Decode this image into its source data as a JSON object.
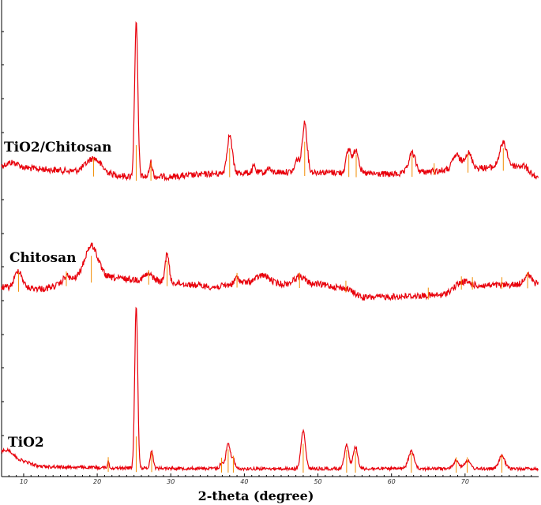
{
  "chart_data": {
    "type": "line",
    "xlabel": "2-theta (degree)",
    "ylabel": "",
    "xlim": [
      7,
      80
    ],
    "x_ticks": [
      10,
      20,
      30,
      40,
      50,
      60,
      70
    ],
    "colors": {
      "trace": "#e8000b",
      "stick": "#f28c00",
      "axis": "#000000"
    },
    "grid": false,
    "series": [
      {
        "name": "TiO2/Chitosan",
        "baseline": [
          [
            7,
            211
          ],
          [
            20,
            219
          ],
          [
            24.5,
            224
          ],
          [
            30,
            224
          ],
          [
            36,
            220
          ],
          [
            45,
            218
          ],
          [
            50,
            218
          ],
          [
            60,
            221
          ],
          [
            70,
            214
          ],
          [
            78,
            210
          ],
          [
            80,
            228
          ]
        ],
        "noise": 4,
        "peaks": [
          {
            "x": 8.5,
            "h": 6,
            "w": 0.8
          },
          {
            "x": 19.5,
            "h": 18,
            "w": 1.0
          },
          {
            "x": 25.3,
            "h": 195,
            "w": 0.22
          },
          {
            "x": 27.3,
            "h": 18,
            "w": 0.2
          },
          {
            "x": 38.0,
            "h": 48,
            "w": 0.35
          },
          {
            "x": 41.3,
            "h": 8,
            "w": 0.2
          },
          {
            "x": 43.3,
            "h": 6,
            "w": 0.2
          },
          {
            "x": 47.2,
            "h": 16,
            "w": 0.3
          },
          {
            "x": 48.2,
            "h": 63,
            "w": 0.32
          },
          {
            "x": 54.2,
            "h": 30,
            "w": 0.35
          },
          {
            "x": 55.2,
            "h": 30,
            "w": 0.35
          },
          {
            "x": 62.8,
            "h": 25,
            "w": 0.45
          },
          {
            "x": 68.8,
            "h": 18,
            "w": 0.5
          },
          {
            "x": 70.4,
            "h": 20,
            "w": 0.5
          },
          {
            "x": 75.2,
            "h": 30,
            "w": 0.5
          }
        ],
        "sticks": [
          19.5,
          25.3,
          27.3,
          38.0,
          48.2,
          54.2,
          55.2,
          62.8,
          65.8,
          70.4,
          75.2
        ]
      },
      {
        "name": "Chitosan",
        "baseline": [
          [
            7,
            364
          ],
          [
            13,
            366
          ],
          [
            17,
            354
          ],
          [
            22,
            352
          ],
          [
            30,
            358
          ],
          [
            36,
            364
          ],
          [
            40,
            358
          ],
          [
            45,
            360
          ],
          [
            50,
            360
          ],
          [
            54,
            366
          ],
          [
            56,
            377
          ],
          [
            60,
            376
          ],
          [
            67,
            374
          ],
          [
            69,
            362
          ],
          [
            72,
            362
          ],
          [
            80,
            360
          ]
        ],
        "noise": 4,
        "peaks": [
          {
            "x": 9.3,
            "h": 22,
            "w": 0.5
          },
          {
            "x": 15.8,
            "h": 8,
            "w": 0.4
          },
          {
            "x": 19.2,
            "h": 42,
            "w": 0.9
          },
          {
            "x": 27.0,
            "h": 8,
            "w": 0.6
          },
          {
            "x": 29.5,
            "h": 38,
            "w": 0.25
          },
          {
            "x": 39.0,
            "h": 8,
            "w": 0.3
          },
          {
            "x": 42.5,
            "h": 10,
            "w": 0.9
          },
          {
            "x": 47.5,
            "h": 10,
            "w": 0.7
          },
          {
            "x": 70.0,
            "h": 5,
            "w": 0.7
          },
          {
            "x": 78.5,
            "h": 12,
            "w": 0.5
          }
        ],
        "sticks": [
          9.3,
          15.8,
          19.2,
          27.0,
          29.5,
          39.0,
          47.5,
          53.8,
          65.0,
          69.5,
          71.0,
          75.0,
          78.5
        ]
      },
      {
        "name": "TiO2",
        "baseline": [
          [
            7,
            573
          ],
          [
            9,
            581
          ],
          [
            12,
            591
          ],
          [
            16,
            592
          ],
          [
            22,
            593
          ],
          [
            40,
            594
          ],
          [
            60,
            594
          ],
          [
            80,
            594
          ]
        ],
        "noise": 2,
        "peaks": [
          {
            "x": 8.0,
            "h": 6,
            "w": 0.6
          },
          {
            "x": 21.5,
            "h": 8,
            "w": 0.12
          },
          {
            "x": 25.3,
            "h": 207,
            "w": 0.2
          },
          {
            "x": 27.4,
            "h": 22,
            "w": 0.2
          },
          {
            "x": 36.9,
            "h": 8,
            "w": 0.2
          },
          {
            "x": 37.8,
            "h": 32,
            "w": 0.3
          },
          {
            "x": 38.5,
            "h": 12,
            "w": 0.2
          },
          {
            "x": 48.0,
            "h": 48,
            "w": 0.3
          },
          {
            "x": 53.9,
            "h": 31,
            "w": 0.3
          },
          {
            "x": 55.1,
            "h": 28,
            "w": 0.3
          },
          {
            "x": 62.7,
            "h": 22,
            "w": 0.4
          },
          {
            "x": 68.8,
            "h": 10,
            "w": 0.4
          },
          {
            "x": 70.3,
            "h": 10,
            "w": 0.4
          },
          {
            "x": 75.0,
            "h": 16,
            "w": 0.4
          }
        ],
        "sticks": [
          21.5,
          25.3,
          27.4,
          36.9,
          37.8,
          38.5,
          48.0,
          53.9,
          55.1,
          62.7,
          68.8,
          70.3,
          75.0
        ]
      }
    ]
  }
}
